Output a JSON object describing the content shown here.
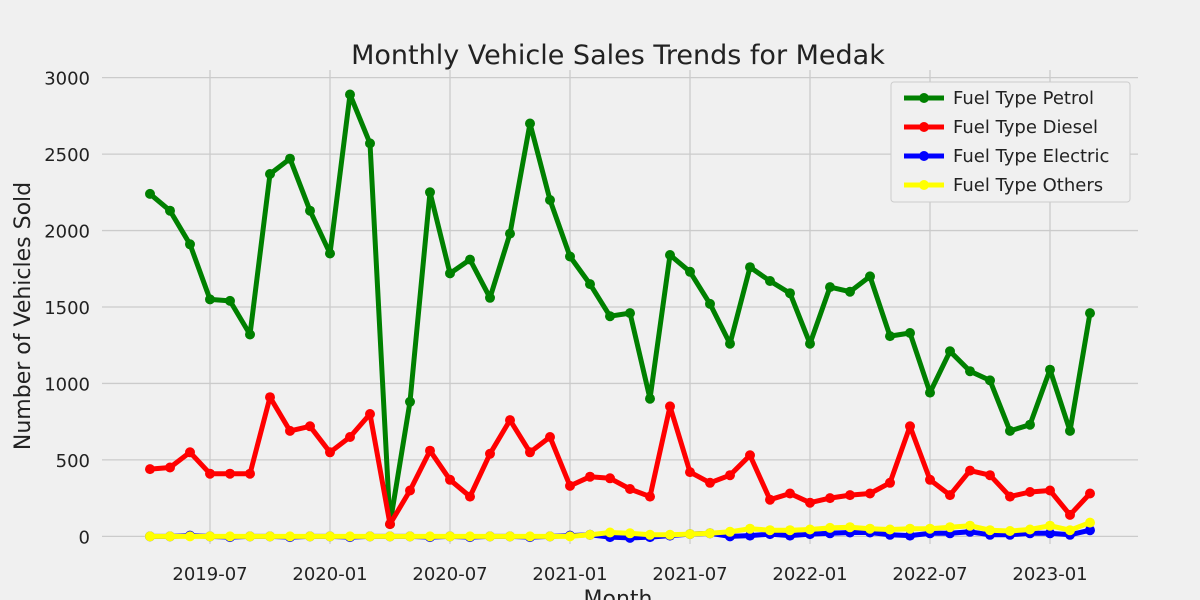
{
  "chart_data": {
    "type": "line",
    "title": "Monthly Vehicle Sales Trends for Medak",
    "xlabel": "Month",
    "ylabel": "Number of Vehicles Sold",
    "ylim": [
      -50,
      3050
    ],
    "yticks": [
      0,
      500,
      1000,
      1500,
      2000,
      2500,
      3000
    ],
    "xticks": [
      "2019-07",
      "2020-01",
      "2020-07",
      "2021-01",
      "2021-07",
      "2022-01",
      "2022-07",
      "2023-01"
    ],
    "x_range": [
      "2019-04",
      "2023-03"
    ],
    "grid": true,
    "legend_position": "top-right",
    "x": [
      "2019-04",
      "2019-05",
      "2019-06",
      "2019-07",
      "2019-08",
      "2019-09",
      "2019-10",
      "2019-11",
      "2019-12",
      "2020-01",
      "2020-02",
      "2020-03",
      "2020-04",
      "2020-05",
      "2020-06",
      "2020-07",
      "2020-08",
      "2020-09",
      "2020-10",
      "2020-11",
      "2020-12",
      "2021-01",
      "2021-02",
      "2021-03",
      "2021-04",
      "2021-05",
      "2021-06",
      "2021-07",
      "2021-08",
      "2021-09",
      "2021-10",
      "2021-11",
      "2021-12",
      "2022-01",
      "2022-02",
      "2022-03",
      "2022-04",
      "2022-05",
      "2022-06",
      "2022-07",
      "2022-08",
      "2022-09",
      "2022-10",
      "2022-11",
      "2022-12",
      "2023-01",
      "2023-02",
      "2023-03"
    ],
    "series": [
      {
        "name": "Fuel Type Petrol",
        "color": "#008000",
        "values": [
          2240,
          2130,
          1910,
          1550,
          1540,
          1320,
          2370,
          2470,
          2130,
          1850,
          2890,
          2570,
          80,
          880,
          2250,
          1720,
          1810,
          1560,
          1980,
          2700,
          2200,
          1830,
          1650,
          1440,
          1460,
          900,
          1840,
          1730,
          1520,
          1260,
          1760,
          1670,
          1590,
          1260,
          1630,
          1600,
          1700,
          1310,
          1330,
          940,
          1210,
          1080,
          1020,
          690,
          730,
          1090,
          690,
          1460
        ]
      },
      {
        "name": "Fuel Type Diesel",
        "color": "#ff0000",
        "values": [
          440,
          450,
          550,
          410,
          410,
          410,
          910,
          690,
          720,
          550,
          650,
          800,
          80,
          300,
          560,
          370,
          260,
          540,
          760,
          550,
          650,
          330,
          390,
          380,
          310,
          260,
          850,
          420,
          350,
          400,
          530,
          240,
          280,
          220,
          250,
          270,
          280,
          350,
          720,
          370,
          270,
          430,
          400,
          260,
          290,
          300,
          140,
          280
        ]
      },
      {
        "name": "Fuel Type Electric",
        "color": "#0000ff",
        "values": [
          0,
          0,
          5,
          0,
          -5,
          0,
          0,
          -5,
          0,
          0,
          -5,
          0,
          0,
          0,
          -5,
          0,
          -5,
          0,
          0,
          -5,
          0,
          5,
          10,
          -5,
          -10,
          -5,
          5,
          15,
          20,
          0,
          5,
          15,
          5,
          15,
          20,
          25,
          25,
          10,
          5,
          20,
          20,
          30,
          10,
          10,
          20,
          20,
          10,
          40
        ]
      },
      {
        "name": "Fuel Type Others",
        "color": "#ffff00",
        "values": [
          0,
          0,
          0,
          0,
          0,
          0,
          0,
          0,
          0,
          0,
          0,
          0,
          0,
          0,
          0,
          0,
          0,
          0,
          0,
          0,
          0,
          0,
          10,
          25,
          20,
          10,
          10,
          15,
          20,
          30,
          50,
          40,
          40,
          45,
          55,
          60,
          50,
          45,
          50,
          50,
          60,
          70,
          40,
          35,
          45,
          70,
          40,
          90
        ]
      }
    ]
  }
}
